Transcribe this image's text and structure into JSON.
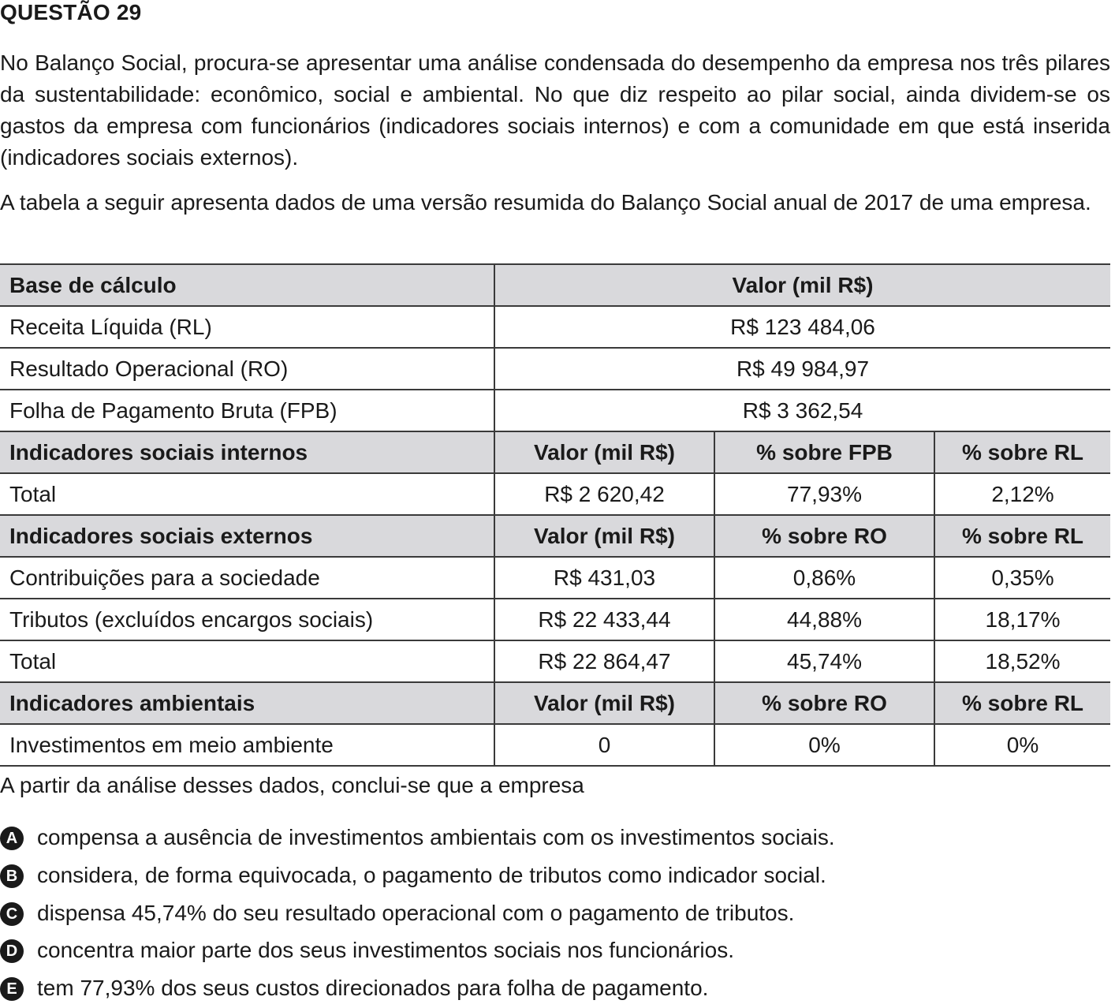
{
  "question": {
    "title": "QUESTÃO 29",
    "paragraph1": "No Balanço Social, procura-se apresentar uma análise condensada do desempenho da empresa nos três pilares da sustentabilidade: econômico, social e ambiental. No que diz respeito ao pilar social, ainda dividem-se os gastos da empresa com funcionários (indicadores sociais internos) e com a comunidade em que está inserida (indicadores sociais externos).",
    "paragraph2": "A tabela a seguir apresenta dados de uma versão resumida do Balanço Social anual de 2017 de uma empresa.",
    "prompt": "A partir da análise desses dados, conclui-se que a empresa"
  },
  "table": {
    "base": {
      "header": [
        "Base de cálculo",
        "Valor (mil R$)"
      ],
      "rows": [
        [
          "Receita Líquida (RL)",
          "R$ 123 484,06"
        ],
        [
          "Resultado Operacional (RO)",
          "R$ 49 984,97"
        ],
        [
          "Folha de Pagamento Bruta (FPB)",
          "R$ 3 362,54"
        ]
      ]
    },
    "internos": {
      "header": [
        "Indicadores sociais internos",
        "Valor (mil R$)",
        "% sobre FPB",
        "% sobre RL"
      ],
      "rows": [
        [
          "Total",
          "R$ 2 620,42",
          "77,93%",
          "2,12%"
        ]
      ]
    },
    "externos": {
      "header": [
        "Indicadores sociais externos",
        "Valor (mil R$)",
        "% sobre RO",
        "% sobre RL"
      ],
      "rows": [
        [
          "Contribuições para a sociedade",
          "R$ 431,03",
          "0,86%",
          "0,35%"
        ],
        [
          "Tributos (excluídos encargos sociais)",
          "R$ 22 433,44",
          "44,88%",
          "18,17%"
        ],
        [
          "Total",
          "R$ 22 864,47",
          "45,74%",
          "18,52%"
        ]
      ]
    },
    "ambientais": {
      "header": [
        "Indicadores ambientais",
        "Valor (mil R$)",
        "% sobre RO",
        "% sobre RL"
      ],
      "rows": [
        [
          "Investimentos em meio ambiente",
          "0",
          "0%",
          "0%"
        ]
      ]
    }
  },
  "options": [
    {
      "letter": "A",
      "text": "compensa a ausência de investimentos ambientais com os investimentos sociais."
    },
    {
      "letter": "B",
      "text": "considera, de forma equivocada, o pagamento de tributos como indicador social."
    },
    {
      "letter": "C",
      "text": "dispensa 45,74% do seu resultado operacional com o pagamento de tributos."
    },
    {
      "letter": "D",
      "text": "concentra maior parte dos seus investimentos sociais nos funcionários."
    },
    {
      "letter": "E",
      "text": "tem 77,93% dos seus custos direcionados para folha de pagamento."
    }
  ],
  "colors": {
    "header_bg": "#d9d9dc",
    "border": "#3a3a3a",
    "text": "#1a1a1a"
  }
}
